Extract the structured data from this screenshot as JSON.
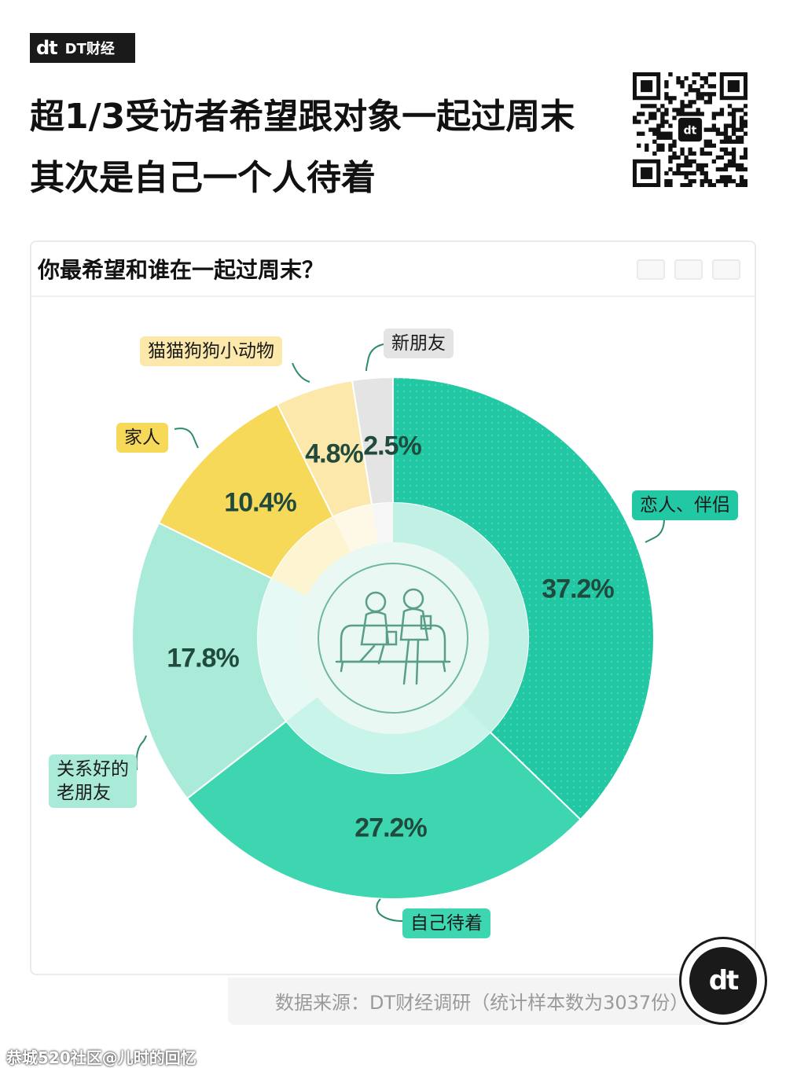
{
  "brand": {
    "logo": "dt",
    "name": "DT财经"
  },
  "headline": {
    "line1": "超1/3受访者希望跟对象一起过周末",
    "line2": "其次是自己一个人待着"
  },
  "qr_icon": "qr-code-icon",
  "card": {
    "question": "你最希望和谁在一起过周末？"
  },
  "colors": {
    "lover": "#22c8a3",
    "self": "#3dd6b0",
    "old_friends": "#a9ead8",
    "family": "#f7d95a",
    "pets": "#fbe8aa",
    "new_friends": "#e4e4e4",
    "inner_ring": "#e7f8f2",
    "text_dark": "#1f4a3d"
  },
  "chart_data": {
    "type": "pie",
    "title": "你最希望和谁在一起过周末？",
    "categories": [
      "恋人、伴侣",
      "自己待着",
      "关系好的老朋友",
      "家人",
      "猫猫狗狗小动物",
      "新朋友"
    ],
    "values": [
      37.2,
      27.2,
      17.8,
      10.4,
      4.8,
      2.5
    ],
    "labels": [
      "37.2%",
      "27.2%",
      "17.8%",
      "10.4%",
      "4.8%",
      "2.5%"
    ],
    "category_labels": {
      "lover": "恋人、伴侣",
      "self": "自己待着",
      "old_friends_1": "关系好的",
      "old_friends_2": "老朋友",
      "family": "家人",
      "pets": "猫猫狗狗小动物",
      "new_friends": "新朋友"
    }
  },
  "footer": {
    "source": "数据来源：DT财经调研（统计样本数为3037份）",
    "round_logo": "dt",
    "watermark": "恭城520社区@儿时的回忆"
  }
}
